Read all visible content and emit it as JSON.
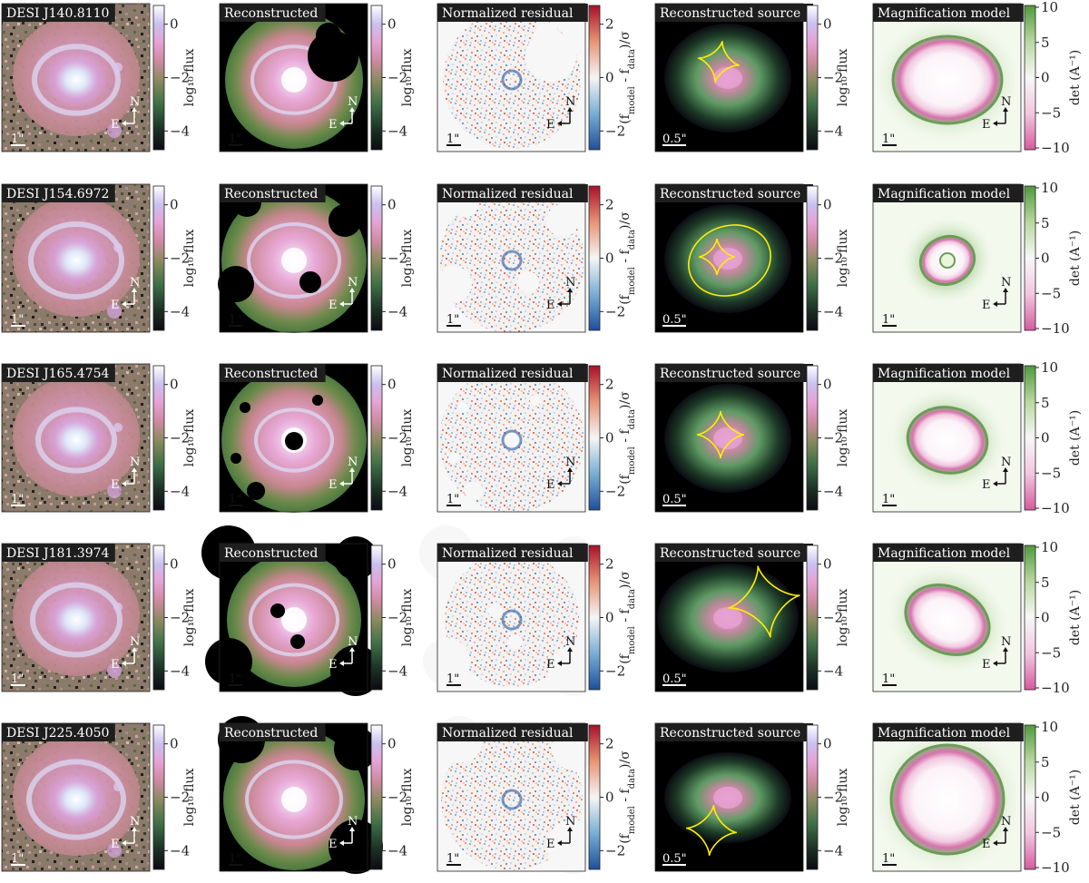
{
  "figure": {
    "column_titles": {
      "data_prefix": "",
      "reconstructed": "Reconstructed",
      "residual": "Normalized residual",
      "source": "Reconstructed source",
      "magnification": "Magnification model"
    },
    "colorbar_labels": {
      "flux": "log₁₀ flux",
      "residual": "(f_model - f_data)/σ",
      "det": "det (A⁻¹)"
    },
    "colorbar_ticks": {
      "flux": [
        "0",
        "−2",
        "−4"
      ],
      "residual": [
        "2",
        "0",
        "−2"
      ],
      "det": [
        "10",
        "5",
        "0",
        "−5",
        "−10"
      ]
    },
    "scalebars": {
      "image": "1\"",
      "source": "0.5\""
    },
    "compass": {
      "north": "N",
      "east": "E"
    },
    "colors": {
      "flux_map": [
        "#0b0b12",
        "#1b2a1e",
        "#3c6b46",
        "#7d8a55",
        "#c98a9a",
        "#e7a6d4",
        "#cbb6ec",
        "#dfe6f7",
        "#ffffff"
      ],
      "residual_map": [
        "#1f4e9c",
        "#6ea6d2",
        "#f5f5f5",
        "#e09070",
        "#a8102a"
      ],
      "det_map": [
        "#d65a9f",
        "#f2c6df",
        "#f8f8f8",
        "#b8d8a0",
        "#4f9a3c"
      ],
      "caustic": "#ffee00"
    },
    "rows": [
      {
        "name": "DESI J140.8110"
      },
      {
        "name": "DESI J154.6972"
      },
      {
        "name": "DESI J165.4754"
      },
      {
        "name": "DESI J181.3974"
      },
      {
        "name": "DESI J225.4050"
      }
    ]
  }
}
